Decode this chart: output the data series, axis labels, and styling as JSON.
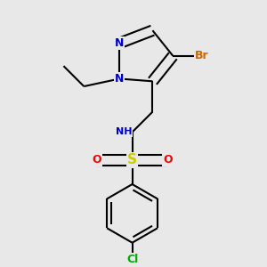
{
  "bg_color": "#e8e8e8",
  "bond_color": "#000000",
  "bond_width": 1.5,
  "atom_colors": {
    "N": "#0000cc",
    "Br": "#cc6600",
    "Cl": "#00aa00",
    "S": "#cccc00",
    "O": "#ff0000",
    "H": "#555555",
    "C": "#000000"
  },
  "font_size": 9,
  "fig_size": [
    3.0,
    3.0
  ],
  "dpi": 100
}
